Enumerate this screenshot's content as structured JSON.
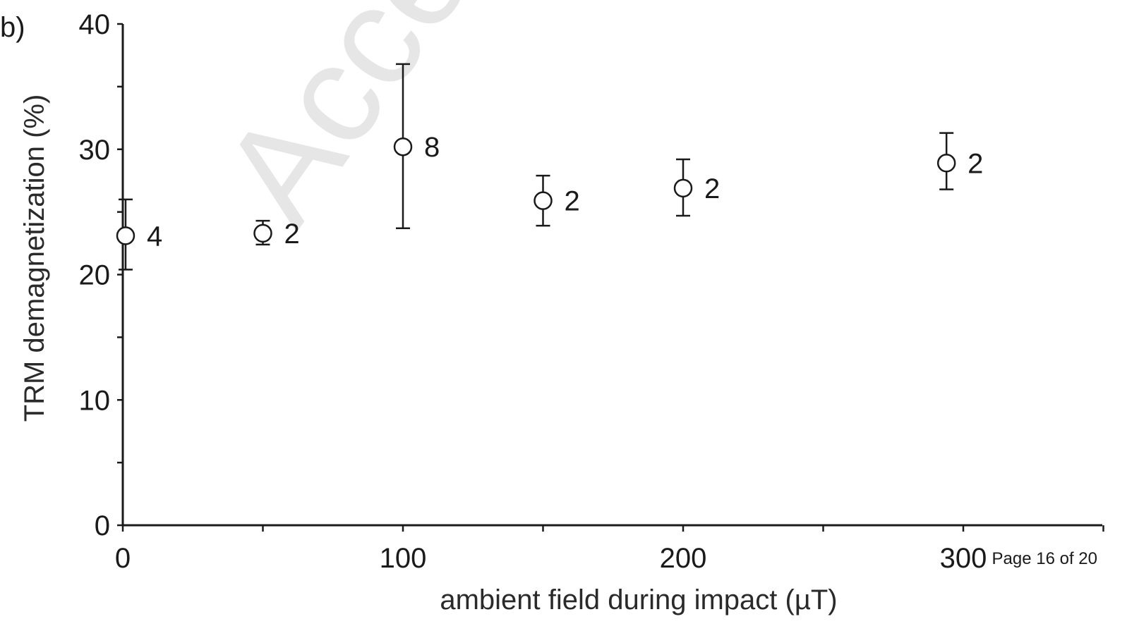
{
  "panel_label": "b)",
  "watermark": "Accepte",
  "footer": "Page 16 of 20",
  "chart_data": {
    "type": "scatter",
    "title": "",
    "xlabel": "ambient field during impact (µT)",
    "ylabel": "TRM demagnetization (%)",
    "xlim": [
      0,
      350
    ],
    "ylim": [
      0,
      40
    ],
    "xticks": [
      0,
      100,
      200,
      300
    ],
    "yticks": [
      0,
      10,
      20,
      30,
      40
    ],
    "grid": false,
    "series": [
      {
        "marker": "open-circle",
        "points": [
          {
            "x": 1,
            "y": 23.1,
            "err_low": 20.4,
            "err_high": 26.0,
            "n": "4"
          },
          {
            "x": 50,
            "y": 23.3,
            "err_low": 22.4,
            "err_high": 24.3,
            "n": "2"
          },
          {
            "x": 100,
            "y": 30.2,
            "err_low": 23.7,
            "err_high": 36.8,
            "n": "8"
          },
          {
            "x": 150,
            "y": 25.9,
            "err_low": 23.9,
            "err_high": 27.9,
            "n": "2"
          },
          {
            "x": 200,
            "y": 26.9,
            "err_low": 24.7,
            "err_high": 29.2,
            "n": "2"
          },
          {
            "x": 294,
            "y": 28.9,
            "err_low": 26.8,
            "err_high": 31.3,
            "n": "2"
          }
        ]
      }
    ]
  }
}
